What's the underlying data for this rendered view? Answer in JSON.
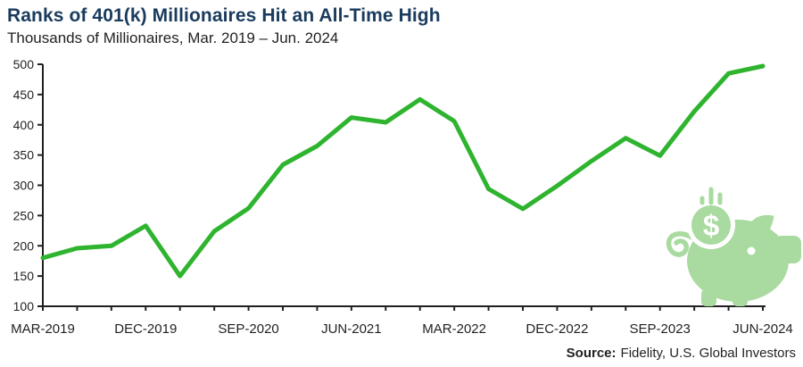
{
  "header": {
    "title": "Ranks of 401(k) Millionaires Hit an All-Time High",
    "subtitle": "Thousands of Millionaires, Mar. 2019 – Jun. 2024"
  },
  "footer": {
    "source_label": "Source:",
    "source_text": "Fidelity, U.S. Global Investors"
  },
  "colors": {
    "title": "#1a3b5d",
    "text": "#231f20",
    "axis": "#231f20",
    "line": "#2eb42e",
    "icon": "#a9daa0"
  },
  "icons": {
    "piggy_bank": "piggy-bank-with-coin-icon"
  },
  "chart_data": {
    "type": "line",
    "title": "Ranks of 401(k) Millionaires Hit an All-Time High",
    "subtitle": "Thousands of Millionaires, Mar. 2019 – Jun. 2024",
    "xlabel": "",
    "ylabel": "Thousands of Millionaires",
    "ylim": [
      100,
      500
    ],
    "ytick_step": 50,
    "grid": false,
    "legend": "none",
    "line_width": 5,
    "categories": [
      "MAR-2019",
      "JUN-2019",
      "SEP-2019",
      "DEC-2019",
      "MAR-2020",
      "JUN-2020",
      "SEP-2020",
      "DEC-2020",
      "MAR-2021",
      "JUN-2021",
      "SEP-2021",
      "DEC-2021",
      "MAR-2022",
      "JUN-2022",
      "SEP-2022",
      "DEC-2022",
      "MAR-2023",
      "JUN-2023",
      "SEP-2023",
      "DEC-2023",
      "MAR-2024",
      "JUN-2024"
    ],
    "values": [
      180,
      196,
      200,
      233,
      150,
      224,
      262,
      334,
      365,
      412,
      404,
      442,
      406,
      294,
      261,
      299,
      340,
      378,
      349,
      422,
      485,
      497
    ],
    "x_tick_labels": [
      "MAR-2019",
      "DEC-2019",
      "SEP-2020",
      "JUN-2021",
      "MAR-2022",
      "DEC-2022",
      "SEP-2023",
      "JUN-2024"
    ],
    "x_label_every": 3
  }
}
